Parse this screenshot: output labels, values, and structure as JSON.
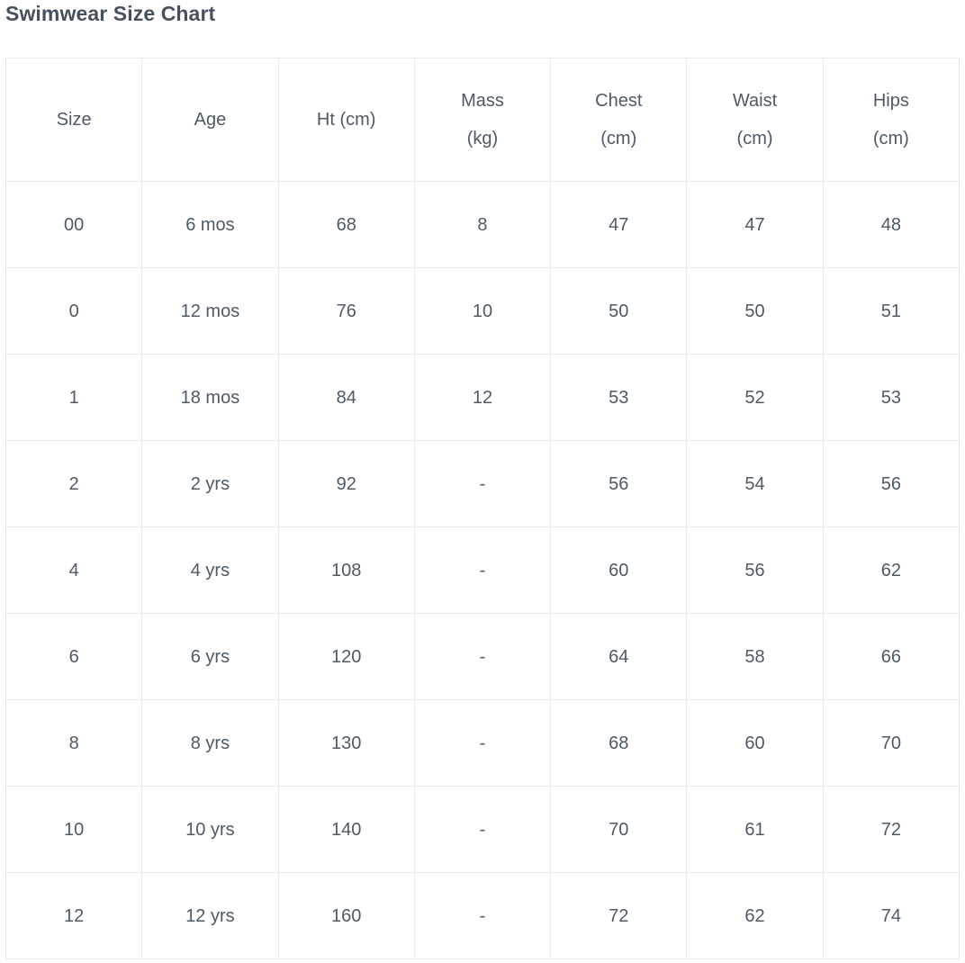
{
  "page": {
    "title": "Swimwear Size Chart"
  },
  "colors": {
    "title_text": "#47515d",
    "cell_text": "#4f5a66",
    "border": "#e9eaec",
    "background": "#ffffff"
  },
  "headers_display": [
    "Size",
    "Age",
    "Ht (cm)",
    "Mass\n(kg)",
    "Chest\n(cm)",
    "Waist\n(cm)",
    "Hips\n(cm)"
  ],
  "chart_data": {
    "type": "table",
    "title": "Swimwear Size Chart",
    "columns": [
      "Size",
      "Age",
      "Ht (cm)",
      "Mass (kg)",
      "Chest (cm)",
      "Waist (cm)",
      "Hips (cm)"
    ],
    "rows": [
      [
        "00",
        "6 mos",
        "68",
        "8",
        "47",
        "47",
        "48"
      ],
      [
        "0",
        "12 mos",
        "76",
        "10",
        "50",
        "50",
        "51"
      ],
      [
        "1",
        "18 mos",
        "84",
        "12",
        "53",
        "52",
        "53"
      ],
      [
        "2",
        "2 yrs",
        "92",
        "-",
        "56",
        "54",
        "56"
      ],
      [
        "4",
        "4 yrs",
        "108",
        "-",
        "60",
        "56",
        "62"
      ],
      [
        "6",
        "6 yrs",
        "120",
        "-",
        "64",
        "58",
        "66"
      ],
      [
        "8",
        "8 yrs",
        "130",
        "-",
        "68",
        "60",
        "70"
      ],
      [
        "10",
        "10 yrs",
        "140",
        "-",
        "70",
        "61",
        "72"
      ],
      [
        "12",
        "12 yrs",
        "160",
        "-",
        "72",
        "62",
        "74"
      ]
    ]
  }
}
